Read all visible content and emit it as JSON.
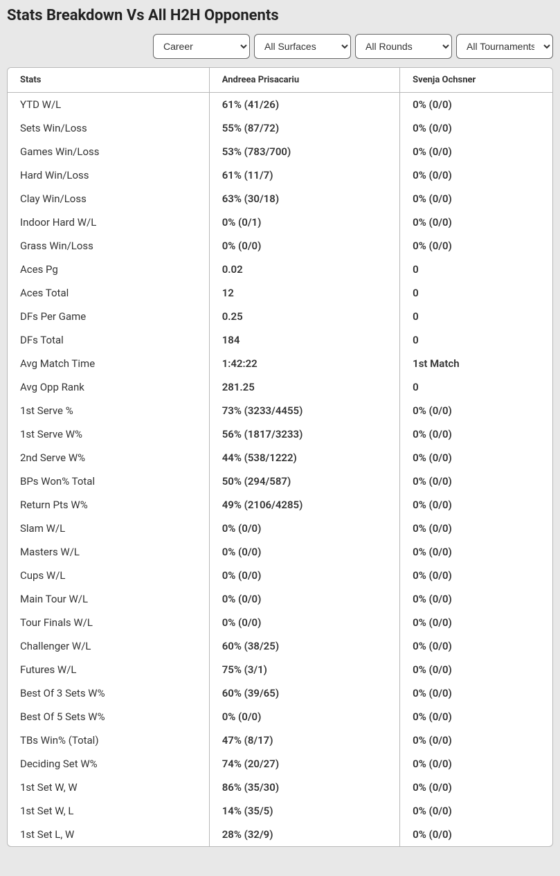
{
  "title": "Stats Breakdown Vs All H2H Opponents",
  "filters": {
    "period": {
      "selected": "Career"
    },
    "surface": {
      "selected": "All Surfaces"
    },
    "round": {
      "selected": "All Rounds"
    },
    "tournament": {
      "selected": "All Tournaments"
    }
  },
  "columns": {
    "stat": "Stats",
    "player1": "Andreea Prisacariu",
    "player2": "Svenja Ochsner"
  },
  "rows": [
    {
      "stat": "YTD W/L",
      "p1": "61% (41/26)",
      "p2": "0% (0/0)"
    },
    {
      "stat": "Sets Win/Loss",
      "p1": "55% (87/72)",
      "p2": "0% (0/0)"
    },
    {
      "stat": "Games Win/Loss",
      "p1": "53% (783/700)",
      "p2": "0% (0/0)"
    },
    {
      "stat": "Hard Win/Loss",
      "p1": "61% (11/7)",
      "p2": "0% (0/0)"
    },
    {
      "stat": "Clay Win/Loss",
      "p1": "63% (30/18)",
      "p2": "0% (0/0)"
    },
    {
      "stat": "Indoor Hard W/L",
      "p1": "0% (0/1)",
      "p2": "0% (0/0)"
    },
    {
      "stat": "Grass Win/Loss",
      "p1": "0% (0/0)",
      "p2": "0% (0/0)"
    },
    {
      "stat": "Aces Pg",
      "p1": "0.02",
      "p2": "0"
    },
    {
      "stat": "Aces Total",
      "p1": "12",
      "p2": "0"
    },
    {
      "stat": "DFs Per Game",
      "p1": "0.25",
      "p2": "0"
    },
    {
      "stat": "DFs Total",
      "p1": "184",
      "p2": "0"
    },
    {
      "stat": "Avg Match Time",
      "p1": "1:42:22",
      "p2": "1st Match"
    },
    {
      "stat": "Avg Opp Rank",
      "p1": "281.25",
      "p2": "0"
    },
    {
      "stat": "1st Serve %",
      "p1": "73% (3233/4455)",
      "p2": "0% (0/0)"
    },
    {
      "stat": "1st Serve W%",
      "p1": "56% (1817/3233)",
      "p2": "0% (0/0)"
    },
    {
      "stat": "2nd Serve W%",
      "p1": "44% (538/1222)",
      "p2": "0% (0/0)"
    },
    {
      "stat": "BPs Won% Total",
      "p1": "50% (294/587)",
      "p2": "0% (0/0)"
    },
    {
      "stat": "Return Pts W%",
      "p1": "49% (2106/4285)",
      "p2": "0% (0/0)"
    },
    {
      "stat": "Slam W/L",
      "p1": "0% (0/0)",
      "p2": "0% (0/0)"
    },
    {
      "stat": "Masters W/L",
      "p1": "0% (0/0)",
      "p2": "0% (0/0)"
    },
    {
      "stat": "Cups W/L",
      "p1": "0% (0/0)",
      "p2": "0% (0/0)"
    },
    {
      "stat": "Main Tour W/L",
      "p1": "0% (0/0)",
      "p2": "0% (0/0)"
    },
    {
      "stat": "Tour Finals W/L",
      "p1": "0% (0/0)",
      "p2": "0% (0/0)"
    },
    {
      "stat": "Challenger W/L",
      "p1": "60% (38/25)",
      "p2": "0% (0/0)"
    },
    {
      "stat": "Futures W/L",
      "p1": "75% (3/1)",
      "p2": "0% (0/0)"
    },
    {
      "stat": "Best Of 3 Sets W%",
      "p1": "60% (39/65)",
      "p2": "0% (0/0)"
    },
    {
      "stat": "Best Of 5 Sets W%",
      "p1": "0% (0/0)",
      "p2": "0% (0/0)"
    },
    {
      "stat": "TBs Win% (Total)",
      "p1": "47% (8/17)",
      "p2": "0% (0/0)"
    },
    {
      "stat": "Deciding Set W%",
      "p1": "74% (20/27)",
      "p2": "0% (0/0)"
    },
    {
      "stat": "1st Set W, W",
      "p1": "86% (35/30)",
      "p2": "0% (0/0)"
    },
    {
      "stat": "1st Set W, L",
      "p1": "14% (35/5)",
      "p2": "0% (0/0)"
    },
    {
      "stat": "1st Set L, W",
      "p1": "28% (32/9)",
      "p2": "0% (0/0)"
    }
  ]
}
